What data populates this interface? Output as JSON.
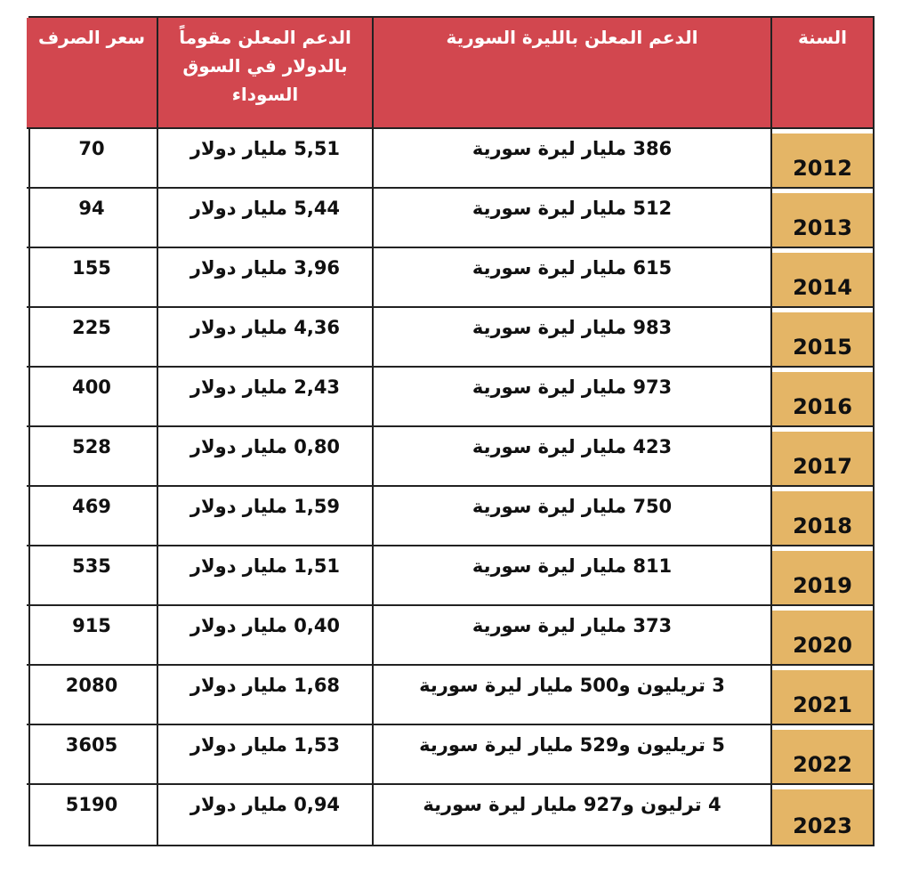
{
  "table": {
    "headers": [
      "السنة",
      "الدعم المعلن بالليرة السورية",
      "الدعم المعلن مقوماً بالدولار في السوق السوداء",
      "سعر الصرف"
    ],
    "rows": [
      [
        "2012",
        "386 مليار ليرة سورية",
        "5,51 مليار دولار",
        "70"
      ],
      [
        "2013",
        "512 مليار ليرة سورية",
        "5,44 مليار دولار",
        "94"
      ],
      [
        "2014",
        "615 مليار ليرة سورية",
        "3,96 مليار دولار",
        "155"
      ],
      [
        "2015",
        "983 مليار ليرة سورية",
        "4,36 مليار دولار",
        "225"
      ],
      [
        "2016",
        "973 مليار ليرة سورية",
        "2,43 مليار دولار",
        "400"
      ],
      [
        "2017",
        "423 مليار ليرة سورية",
        "0,80 مليار دولار",
        "528"
      ],
      [
        "2018",
        "750 مليار ليرة سورية",
        "1,59 مليار دولار",
        "469"
      ],
      [
        "2019",
        "811 مليار ليرة سورية",
        "1,51 مليار دولار",
        "535"
      ],
      [
        "2020",
        "373 مليار ليرة سورية",
        "0,40 مليار دولار",
        "915"
      ],
      [
        "2021",
        "3 تريليون و500 مليار ليرة سورية",
        "1,68 مليار دولار",
        "2080"
      ],
      [
        "2022",
        "5 تريليون و529 مليار ليرة سورية",
        "1,53 مليار دولار",
        "3605"
      ],
      [
        "2023",
        "4 ترليون و927 مليار ليرة سورية",
        "0,94 مليار دولار",
        "5190"
      ]
    ]
  }
}
